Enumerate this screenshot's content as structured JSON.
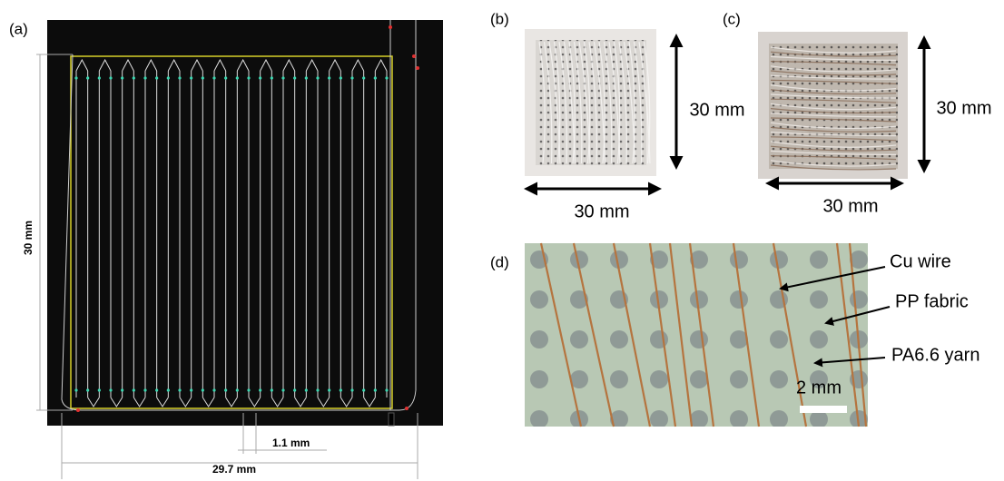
{
  "panel_a": {
    "label": "(a)",
    "height_dim": "30 mm",
    "pitch_dim": "1.1 mm",
    "width_dim": "29.7 mm"
  },
  "panel_b": {
    "label": "(b)",
    "height_dim": "30 mm",
    "width_dim": "30 mm"
  },
  "panel_c": {
    "label": "(c)",
    "height_dim": "30 mm",
    "width_dim": "30 mm"
  },
  "panel_d": {
    "label": "(d)",
    "annotations": [
      "Cu wire",
      "PP fabric",
      "PA6.6 yarn"
    ],
    "scale_bar": "2 mm"
  }
}
